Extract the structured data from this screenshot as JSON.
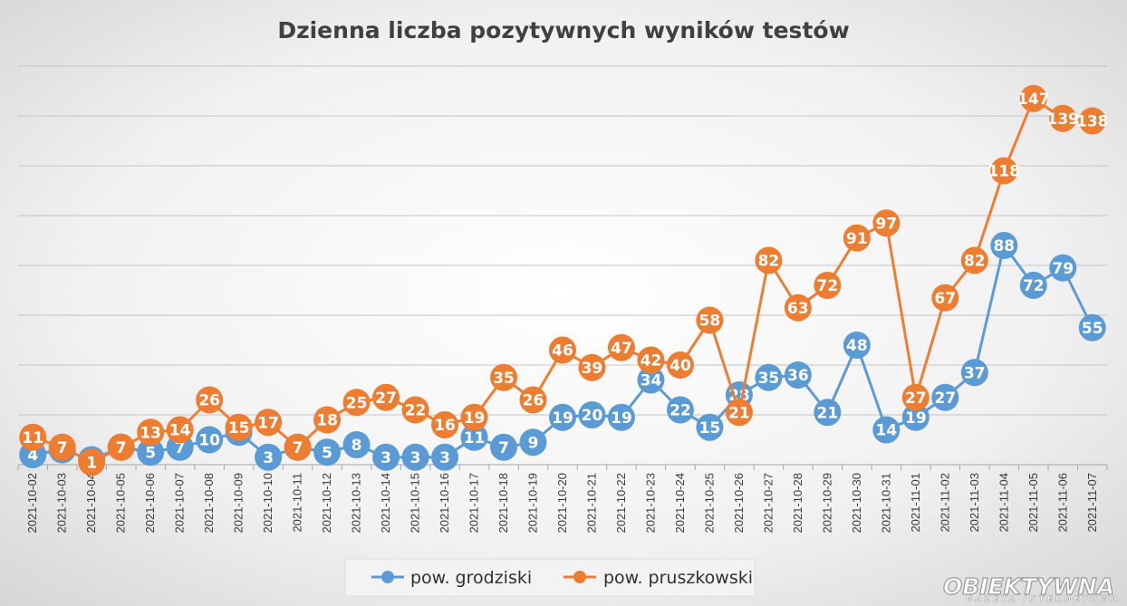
{
  "chart_data": {
    "type": "line",
    "title": "Dzienna liczba pozytywnych wyników testów",
    "xlabel": "",
    "ylabel": "",
    "ylim": [
      0,
      160
    ],
    "grid": true,
    "legend_position": "bottom",
    "categories": [
      "2021-10-02",
      "2021-10-03",
      "2021-10-04",
      "2021-10-05",
      "2021-10-06",
      "2021-10-07",
      "2021-10-08",
      "2021-10-09",
      "2021-10-10",
      "2021-10-11",
      "2021-10-12",
      "2021-10-13",
      "2021-10-14",
      "2021-10-15",
      "2021-10-16",
      "2021-10-17",
      "2021-10-18",
      "2021-10-19",
      "2021-10-20",
      "2021-10-21",
      "2021-10-22",
      "2021-10-23",
      "2021-10-24",
      "2021-10-25",
      "2021-10-26",
      "2021-10-27",
      "2021-10-28",
      "2021-10-29",
      "2021-10-30",
      "2021-10-31",
      "2021-11-01",
      "2021-11-02",
      "2021-11-03",
      "2021-11-04",
      "2021-11-05",
      "2021-11-06",
      "2021-11-07"
    ],
    "series": [
      {
        "name": "pow. grodziski",
        "color": "#5b9bd5",
        "values": [
          4,
          6,
          2,
          7,
          5,
          7,
          10,
          13,
          3,
          7,
          5,
          8,
          3,
          3,
          3,
          11,
          7,
          9,
          19,
          20,
          19,
          34,
          22,
          15,
          28,
          35,
          36,
          21,
          48,
          14,
          19,
          27,
          37,
          88,
          72,
          79,
          55
        ]
      },
      {
        "name": "pow. pruszkowski",
        "color": "#ed7d31",
        "values": [
          11,
          7,
          1,
          7,
          13,
          14,
          26,
          15,
          17,
          7,
          18,
          25,
          27,
          22,
          16,
          19,
          35,
          26,
          46,
          39,
          47,
          42,
          40,
          58,
          21,
          82,
          63,
          72,
          91,
          97,
          27,
          67,
          82,
          118,
          147,
          139,
          138
        ]
      }
    ]
  },
  "watermark": {
    "line1": "OBIEKTYWNA",
    "line2": "GAZETA INTERNETOWA"
  }
}
